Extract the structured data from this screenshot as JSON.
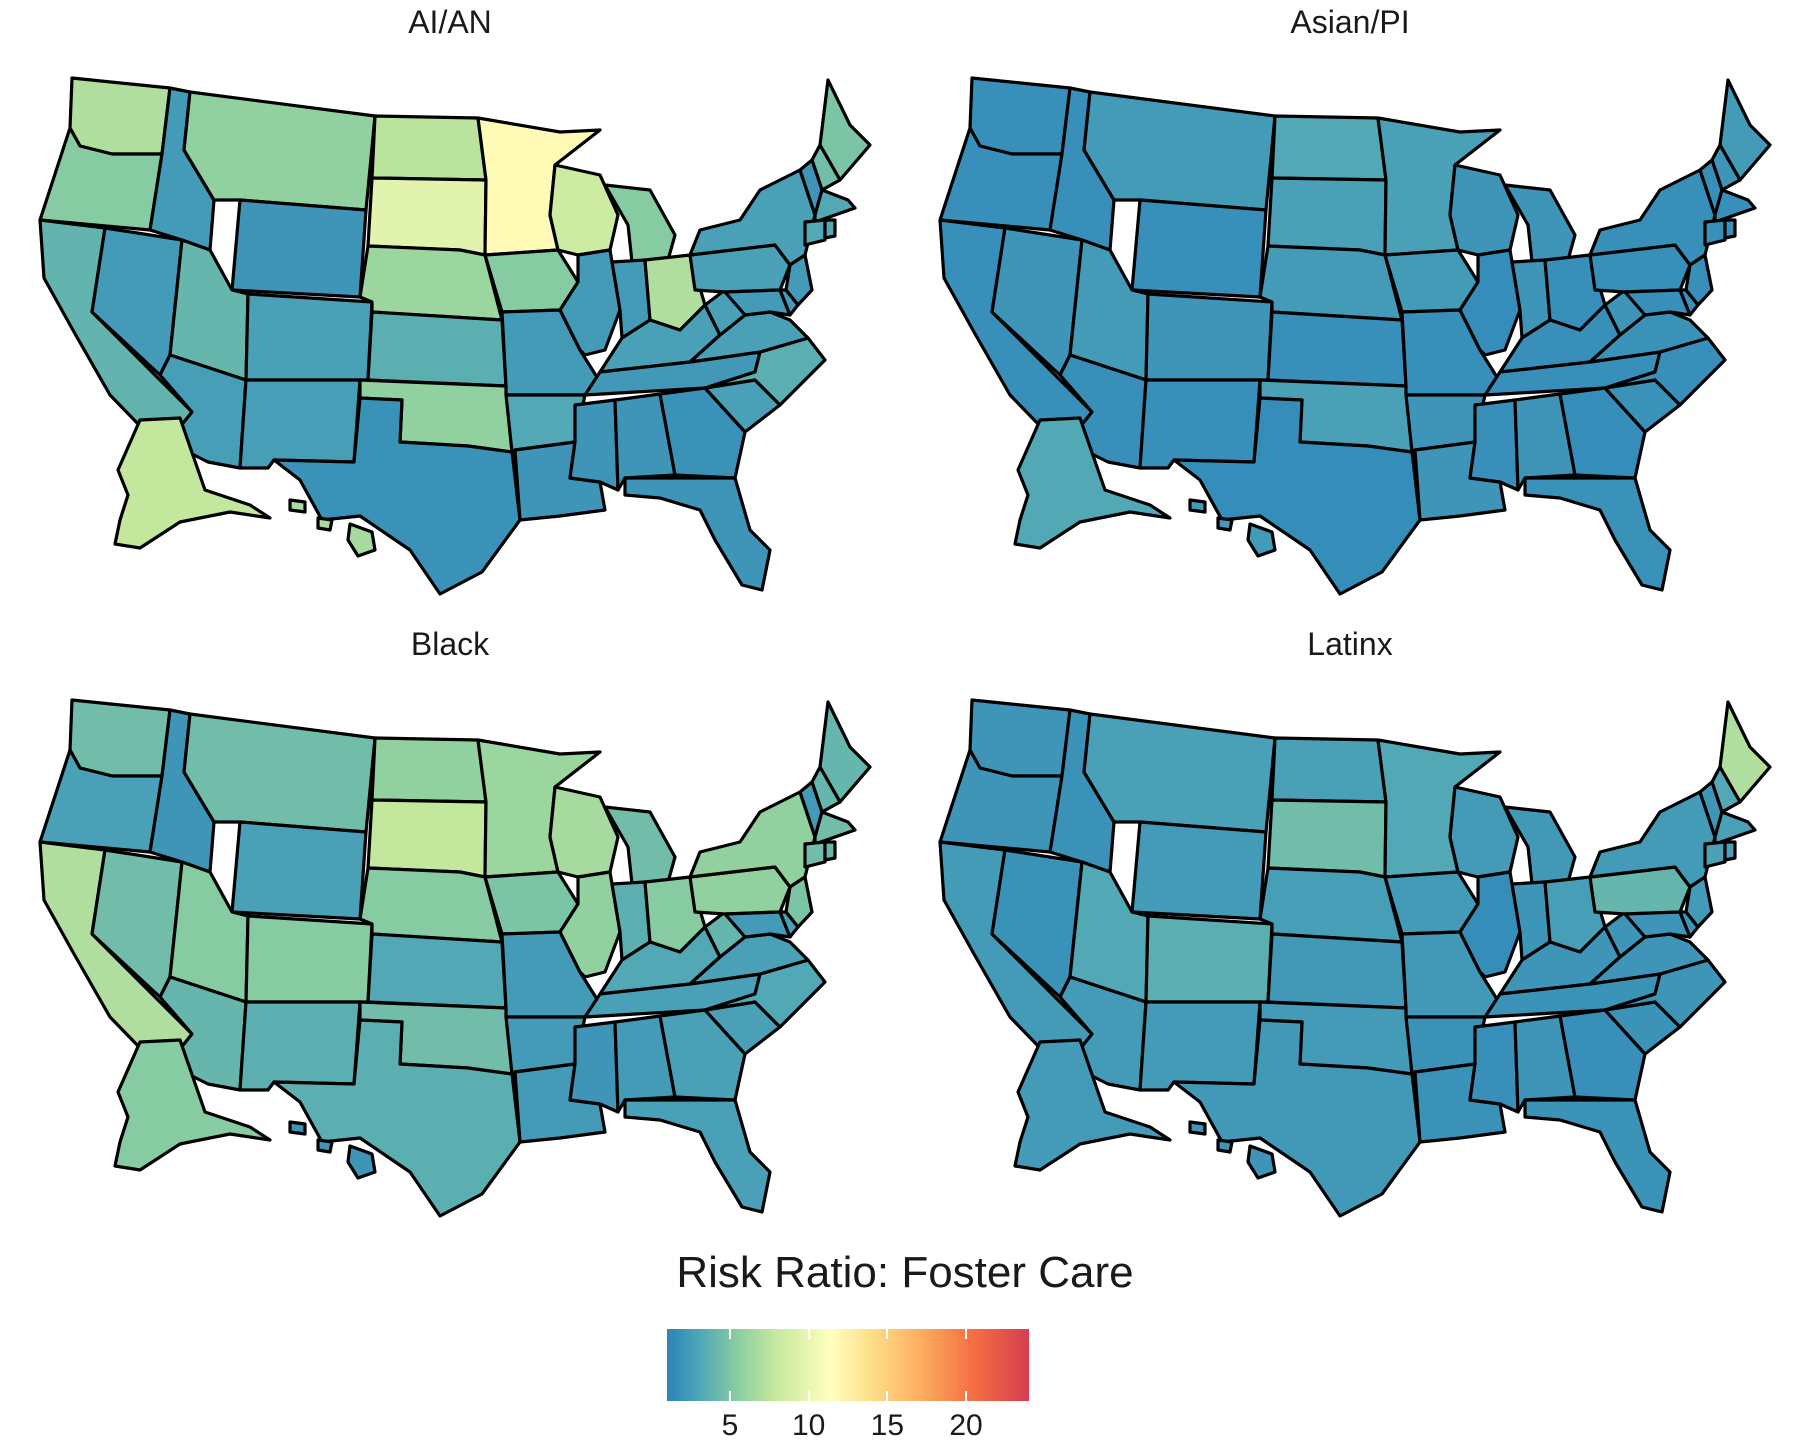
{
  "panels": [
    {
      "title": "AI/AN",
      "states": {
        "WA": 8.5,
        "OR": 6.5,
        "CA": 4.8,
        "NV": 3.0,
        "ID": 3.0,
        "MT": 7.0,
        "WY": 2.5,
        "UT": 5.0,
        "CO": 3.5,
        "AZ": 3.2,
        "NM": 3.2,
        "ND": 9.0,
        "SD": 11.0,
        "NE": 7.5,
        "KS": 4.5,
        "OK": 7.0,
        "TX": 2.2,
        "MN": 13.0,
        "IA": 6.5,
        "MO": 3.0,
        "AR": 4.0,
        "LA": 2.5,
        "WI": 10.0,
        "IL": 3.0,
        "MI": 6.5,
        "IN": 3.0,
        "OH": 8.5,
        "KY": 3.5,
        "TN": 2.8,
        "MS": 2.5,
        "AL": 2.5,
        "GA": 2.2,
        "FL": 2.5,
        "SC": 3.5,
        "NC": 4.5,
        "VA": 3.5,
        "WV": 3.5,
        "PA": 3.5,
        "NY": 3.5,
        "ME": 6.0,
        "NH": 5.5,
        "VT": 2.5,
        "MA": 4.0,
        "CT": 4.0,
        "NJ": 3.0,
        "MD": 3.0,
        "DE": 3.0,
        "RI": 4.0,
        "AK": 9.5,
        "HI": 8.0
      }
    },
    {
      "title": "Asian/PI",
      "states": {
        "WA": 2.0,
        "OR": 2.0,
        "CA": 2.0,
        "NV": 2.5,
        "ID": 2.0,
        "MT": 3.0,
        "WY": 2.0,
        "UT": 3.0,
        "CO": 2.5,
        "AZ": 2.0,
        "NM": 2.0,
        "ND": 4.0,
        "SD": 3.5,
        "NE": 3.0,
        "KS": 2.0,
        "OK": 3.5,
        "TX": 1.8,
        "MN": 3.5,
        "IA": 3.0,
        "MO": 2.0,
        "AR": 2.5,
        "LA": 2.5,
        "WI": 2.5,
        "IL": 1.8,
        "MI": 2.5,
        "IN": 2.5,
        "OH": 2.0,
        "KY": 2.0,
        "TN": 2.0,
        "MS": 2.0,
        "AL": 2.5,
        "GA": 1.8,
        "FL": 2.2,
        "SC": 2.2,
        "NC": 2.0,
        "VA": 2.2,
        "WV": 2.5,
        "PA": 2.0,
        "NY": 2.0,
        "ME": 3.0,
        "NH": 2.5,
        "VT": 2.0,
        "MA": 2.0,
        "CT": 2.0,
        "NJ": 2.0,
        "MD": 2.0,
        "DE": 2.0,
        "RI": 2.0,
        "AK": 4.0,
        "HI": 3.0
      }
    },
    {
      "title": "Black",
      "states": {
        "WA": 5.5,
        "OR": 3.5,
        "CA": 8.5,
        "NV": 5.5,
        "ID": 2.5,
        "MT": 5.5,
        "WY": 3.5,
        "UT": 6.5,
        "CO": 6.5,
        "AZ": 5.0,
        "NM": 4.5,
        "ND": 7.0,
        "SD": 9.5,
        "NE": 6.5,
        "KS": 4.0,
        "OK": 5.5,
        "TX": 4.5,
        "MN": 7.5,
        "IA": 6.0,
        "MO": 3.0,
        "AR": 3.0,
        "LA": 3.0,
        "WI": 8.0,
        "IL": 7.0,
        "MI": 5.5,
        "IN": 4.5,
        "OH": 6.5,
        "KY": 4.0,
        "TN": 3.5,
        "MS": 2.5,
        "AL": 3.0,
        "GA": 3.5,
        "FL": 3.5,
        "SC": 3.5,
        "NC": 4.0,
        "VA": 3.5,
        "WV": 5.0,
        "PA": 7.0,
        "NY": 7.0,
        "ME": 5.0,
        "NH": 5.0,
        "VT": 3.0,
        "MA": 5.5,
        "CT": 5.5,
        "NJ": 6.0,
        "MD": 3.0,
        "DE": 3.5,
        "RI": 5.0,
        "AK": 6.5,
        "HI": 2.5
      }
    },
    {
      "title": "Latinx",
      "states": {
        "WA": 2.5,
        "OR": 2.5,
        "CA": 3.0,
        "NV": 2.2,
        "ID": 2.2,
        "MT": 3.5,
        "WY": 3.0,
        "UT": 4.0,
        "CO": 4.5,
        "AZ": 3.0,
        "NM": 3.0,
        "ND": 3.5,
        "SD": 5.5,
        "NE": 3.2,
        "KS": 2.8,
        "OK": 3.0,
        "TX": 2.8,
        "MN": 4.0,
        "IA": 3.0,
        "MO": 2.8,
        "AR": 2.2,
        "LA": 2.2,
        "WI": 3.0,
        "IL": 1.8,
        "MI": 2.8,
        "IN": 2.5,
        "OH": 3.2,
        "KY": 2.5,
        "TN": 2.3,
        "MS": 2.0,
        "AL": 2.5,
        "GA": 2.0,
        "FL": 2.3,
        "SC": 2.3,
        "NC": 2.5,
        "VA": 2.5,
        "WV": 2.5,
        "PA": 5.0,
        "NY": 3.0,
        "ME": 8.5,
        "NH": 4.0,
        "VT": 2.5,
        "MA": 3.5,
        "CT": 3.5,
        "NJ": 3.0,
        "MD": 2.5,
        "DE": 2.5,
        "RI": 3.5,
        "AK": 3.0,
        "HI": 2.5
      }
    }
  ],
  "legend": {
    "title": "Risk Ratio: Foster Care",
    "domain": [
      1,
      24
    ],
    "ticks": [
      {
        "value": 5,
        "label": "5"
      },
      {
        "value": 10,
        "label": "10"
      },
      {
        "value": 15,
        "label": "15"
      },
      {
        "value": 20,
        "label": "20"
      }
    ],
    "colors": [
      "#2b83ba",
      "#4fa6b6",
      "#8ccfa0",
      "#c7e89e",
      "#ffffbf",
      "#fee08b",
      "#fdae61",
      "#f46d43",
      "#d53e4f"
    ]
  }
}
